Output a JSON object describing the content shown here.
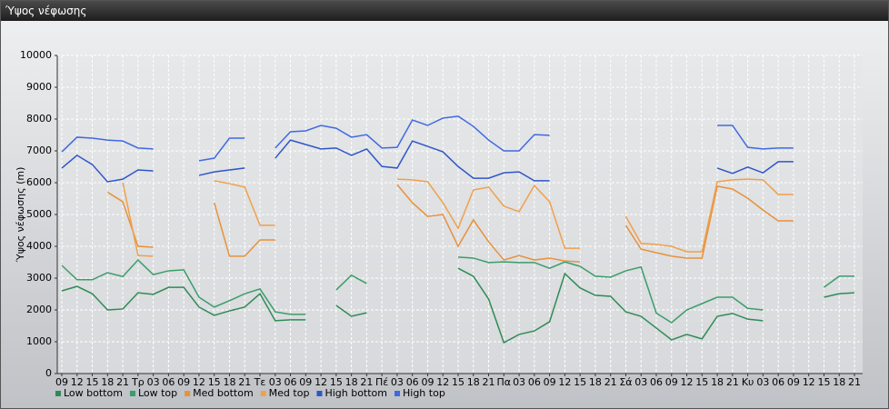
{
  "window_title": "Ύψος νέφωσης",
  "chart_data": {
    "type": "line",
    "y_label": "Ύψος νέφωσης (m)",
    "categories": [
      "09",
      "12",
      "15",
      "18",
      "21",
      "Τρ",
      "03",
      "06",
      "09",
      "12",
      "15",
      "18",
      "21",
      "Τε",
      "03",
      "06",
      "09",
      "12",
      "15",
      "18",
      "21",
      "Πέ",
      "03",
      "06",
      "09",
      "12",
      "15",
      "18",
      "21",
      "Πα",
      "03",
      "06",
      "09",
      "12",
      "15",
      "18",
      "21",
      "Σά",
      "03",
      "06",
      "09",
      "12",
      "15",
      "18",
      "21",
      "Κυ",
      "03",
      "06",
      "09",
      "12",
      "15",
      "18",
      "21"
    ],
    "ylim": [
      0,
      10000
    ],
    "yticks": [
      0,
      1000,
      2000,
      3000,
      4000,
      5000,
      6000,
      7000,
      8000,
      9000,
      10000
    ],
    "grid": true,
    "legend": "bottom",
    "series": [
      {
        "name": "Low bottom",
        "color": "#2e8b57",
        "values": [
          2600,
          2740,
          2510,
          2000,
          2030,
          2540,
          2490,
          2710,
          2710,
          2090,
          1830,
          1970,
          2090,
          2510,
          1660,
          1690,
          1690,
          null,
          2140,
          1800,
          1910,
          null,
          null,
          null,
          null,
          null,
          3310,
          3060,
          2340,
          970,
          1230,
          1340,
          1630,
          3140,
          2690,
          2460,
          2430,
          1940,
          1800,
          1430,
          1060,
          1230,
          1090,
          1800,
          1890,
          1710,
          1660,
          null,
          null,
          null,
          2400,
          2510,
          2540
        ]
      },
      {
        "name": "Low top",
        "color": "#3a9d6b",
        "values": [
          3400,
          2950,
          2950,
          3170,
          3050,
          3570,
          3110,
          3230,
          3260,
          2400,
          2090,
          2290,
          2510,
          2660,
          1940,
          1860,
          1860,
          null,
          2630,
          3090,
          2830,
          null,
          null,
          null,
          null,
          null,
          3660,
          3630,
          3490,
          3510,
          3490,
          3490,
          3310,
          3510,
          3370,
          3060,
          3030,
          3230,
          3350,
          1900,
          1600,
          2000,
          2200,
          2400,
          2400,
          2050,
          2000,
          null,
          null,
          null,
          2710,
          3060,
          3060
        ]
      },
      {
        "name": "Med bottom",
        "color": "#e8913a",
        "values": [
          null,
          null,
          null,
          5700,
          5400,
          4000,
          3970,
          null,
          null,
          null,
          5370,
          3690,
          3690,
          4200,
          4200,
          null,
          null,
          null,
          null,
          null,
          null,
          null,
          5940,
          5370,
          4940,
          5000,
          4000,
          4830,
          4140,
          3570,
          3710,
          3570,
          3630,
          3540,
          3510,
          null,
          null,
          4660,
          3910,
          3800,
          3690,
          3630,
          3630,
          5890,
          5800,
          5510,
          5140,
          4800,
          4800,
          null,
          null,
          null,
          null
        ]
      },
      {
        "name": "Med top",
        "color": "#f0a04b",
        "values": [
          null,
          null,
          null,
          null,
          6000,
          3710,
          3690,
          null,
          null,
          null,
          6060,
          5970,
          5860,
          4660,
          4660,
          null,
          null,
          null,
          null,
          null,
          null,
          null,
          6110,
          6090,
          6030,
          5370,
          4570,
          5770,
          5860,
          5260,
          5090,
          5910,
          5400,
          3940,
          3940,
          null,
          null,
          4940,
          4090,
          4060,
          4000,
          3830,
          3830,
          6030,
          6090,
          6110,
          6090,
          5630,
          5630,
          null,
          null,
          null,
          null
        ]
      },
      {
        "name": "High bottom",
        "color": "#2f56c8",
        "values": [
          6460,
          6860,
          6570,
          6030,
          6110,
          6400,
          6370,
          null,
          null,
          6230,
          6340,
          6400,
          6460,
          null,
          6770,
          7340,
          7200,
          7060,
          7090,
          6860,
          7060,
          6510,
          6460,
          7310,
          7140,
          6970,
          6510,
          6140,
          6140,
          6310,
          6340,
          6060,
          6060,
          null,
          null,
          null,
          null,
          null,
          null,
          null,
          null,
          null,
          null,
          6460,
          6290,
          6490,
          6310,
          6660,
          6660,
          null,
          null,
          null,
          null
        ]
      },
      {
        "name": "High top",
        "color": "#4169e1",
        "values": [
          6970,
          7430,
          7400,
          7340,
          7310,
          7090,
          7060,
          null,
          null,
          6690,
          6770,
          7400,
          7400,
          null,
          7090,
          7600,
          7630,
          7800,
          7710,
          7430,
          7510,
          7090,
          7110,
          7970,
          7800,
          8030,
          8090,
          7770,
          7340,
          7000,
          7000,
          7510,
          7490,
          null,
          null,
          null,
          null,
          null,
          null,
          null,
          null,
          null,
          null,
          7800,
          7800,
          7110,
          7060,
          7090,
          7090,
          null,
          null,
          null,
          null
        ]
      }
    ]
  }
}
